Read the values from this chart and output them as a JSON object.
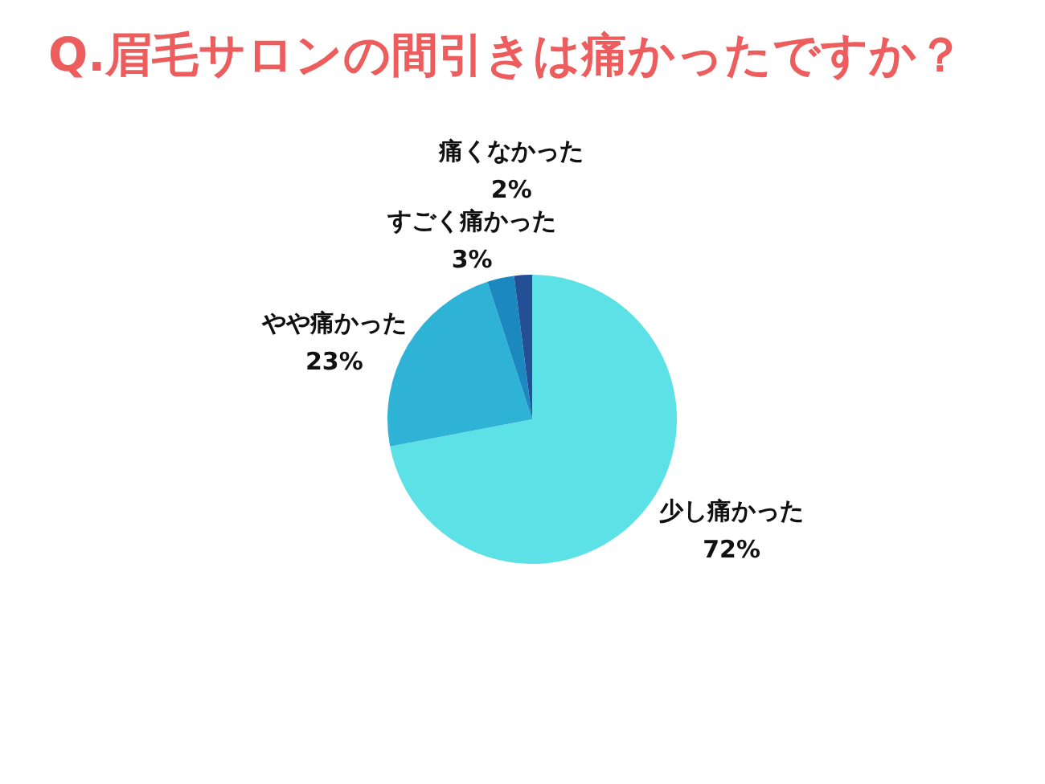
{
  "chart_data": {
    "type": "pie",
    "title": "Q.眉毛サロンの間引きは痛かったですか？",
    "categories": [
      "少し痛かった",
      "やや痛かった",
      "すごく痛かった",
      "痛くなかった"
    ],
    "values": [
      72,
      23,
      3,
      2
    ],
    "value_labels": [
      "72%",
      "23%",
      "3%",
      "2%"
    ],
    "colors": [
      "#5ce1e6",
      "#2eb2d6",
      "#1b88c0",
      "#234f95"
    ]
  }
}
